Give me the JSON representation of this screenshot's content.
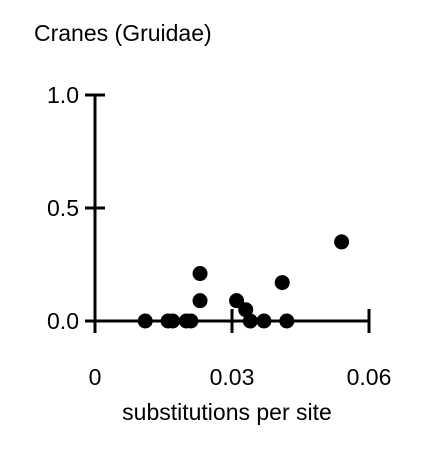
{
  "chart_data": {
    "type": "scatter",
    "title": "Cranes (Gruidae)",
    "xlabel": "substitutions per site",
    "ylabel": "",
    "xlim": [
      0,
      0.06
    ],
    "ylim": [
      0,
      1.0
    ],
    "x_ticks": [
      {
        "value": 0,
        "label": "0"
      },
      {
        "value": 0.03,
        "label": "0.03"
      },
      {
        "value": 0.06,
        "label": "0.06"
      }
    ],
    "y_ticks": [
      {
        "value": 0,
        "label": "0.0"
      },
      {
        "value": 0.5,
        "label": "0.5"
      },
      {
        "value": 1.0,
        "label": "1.0"
      }
    ],
    "grid": false,
    "point_color": "#000000",
    "points": [
      {
        "x": 0.011,
        "y": 0.0
      },
      {
        "x": 0.016,
        "y": 0.0
      },
      {
        "x": 0.017,
        "y": 0.0
      },
      {
        "x": 0.02,
        "y": 0.0
      },
      {
        "x": 0.021,
        "y": 0.0
      },
      {
        "x": 0.023,
        "y": 0.09
      },
      {
        "x": 0.023,
        "y": 0.21
      },
      {
        "x": 0.031,
        "y": 0.09
      },
      {
        "x": 0.033,
        "y": 0.05
      },
      {
        "x": 0.034,
        "y": 0.0
      },
      {
        "x": 0.037,
        "y": 0.0
      },
      {
        "x": 0.041,
        "y": 0.17
      },
      {
        "x": 0.042,
        "y": 0.0
      },
      {
        "x": 0.054,
        "y": 0.35
      }
    ]
  }
}
